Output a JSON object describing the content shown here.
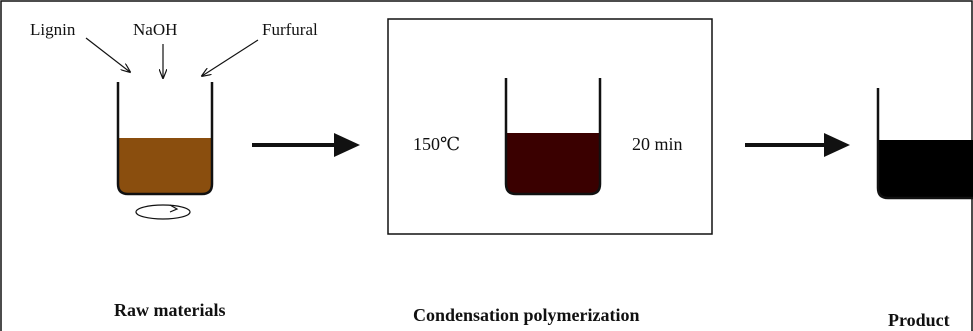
{
  "inputs": {
    "lignin": "Lignin",
    "naoh": "NaOH",
    "furfural": "Furfural"
  },
  "reaction": {
    "temperature": "150℃",
    "time": "20 min"
  },
  "stages": {
    "raw": "Raw materials",
    "condensation": "Condensation polymerization",
    "product": "Product"
  },
  "colors": {
    "raw_liquid": "#8a4e0e",
    "polymer_liquid": "#3a0000",
    "product_liquid": "#000000",
    "line": "#111111"
  }
}
